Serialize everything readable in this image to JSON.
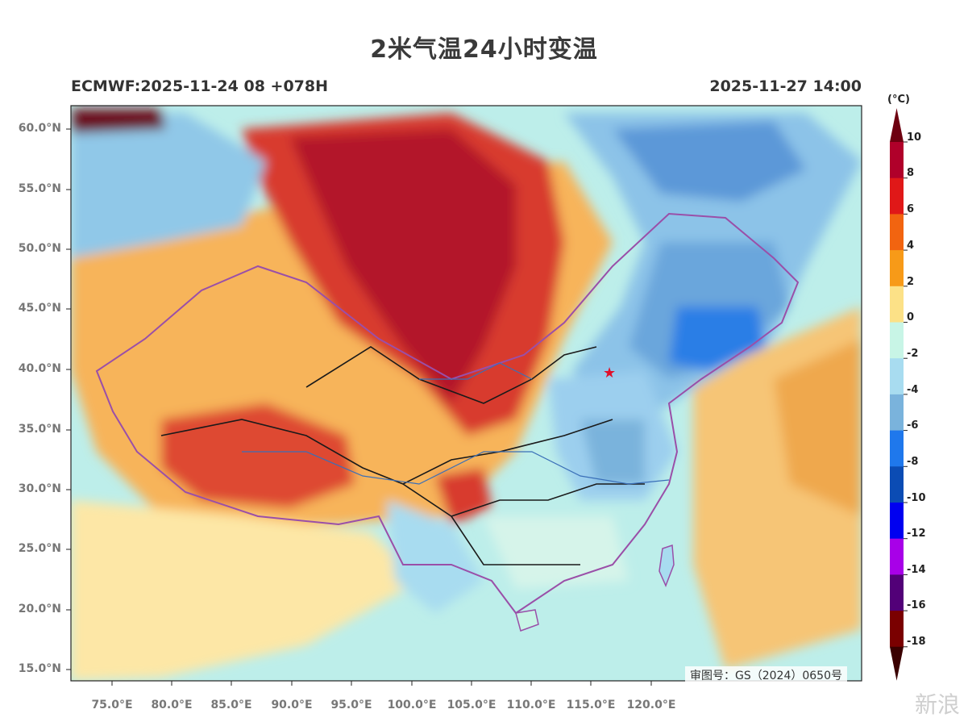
{
  "title": "2米气温24小时变温",
  "subtitle_left": "ECMWF:2025-11-24 08 +078H",
  "subtitle_right": "2025-11-27 14:00",
  "lat_labels": [
    "60.0°N",
    "55.0°N",
    "50.0°N",
    "45.0°N",
    "40.0°N",
    "35.0°N",
    "30.0°N",
    "25.0°N",
    "20.0°N",
    "15.0°N"
  ],
  "lon_labels": [
    "75.0°E",
    "80.0°E",
    "85.0°E",
    "90.0°E",
    "95.0°E",
    "100.0°E",
    "105.0°E",
    "110.0°E",
    "115.0°E",
    "120.0°E"
  ],
  "colorbar": {
    "unit": "(°C)",
    "labels": [
      "10",
      "8",
      "6",
      "4",
      "2",
      "0",
      "-2",
      "-4",
      "-6",
      "-8",
      "-10",
      "-12",
      "-14",
      "-16",
      "-18"
    ],
    "colors": [
      "#b0002a",
      "#e01818",
      "#f26410",
      "#f79a18",
      "#fce187",
      "#c8f5e6",
      "#a8dcf0",
      "#7ab3dc",
      "#1f78ec",
      "#0b4cb4",
      "#0000f0",
      "#a800e8",
      "#520078",
      "#7a0000"
    ],
    "top_color": "#6e0010",
    "bottom_color": "#3a0000"
  },
  "review_number": "审图号：GS（2024）0650号",
  "watermark": "新浪"
}
